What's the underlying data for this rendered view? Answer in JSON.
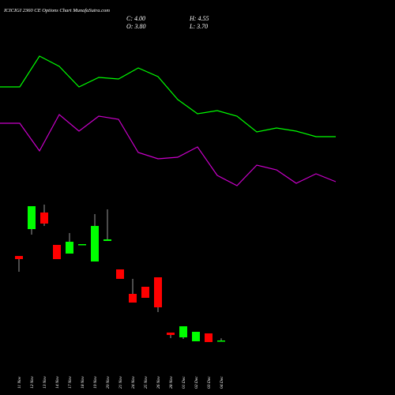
{
  "header": {
    "title": "ICICIGI 2360  CE Options  Chart MunafaSutra.com",
    "close": "C: 4.00",
    "open": "O: 3.80",
    "high": "H: 4.55",
    "low": "L: 3.70"
  },
  "chart_data": [
    {
      "type": "line",
      "ylim": [
        0,
        100
      ],
      "series": [
        {
          "color": "#00ff00",
          "values": [
            56,
            56,
            71.6,
            66.4,
            56,
            60.8,
            60,
            65.6,
            61.2,
            49.6,
            42.4,
            44,
            41.2,
            33.2,
            35.2,
            33.6,
            30.8,
            30.8
          ]
        },
        {
          "color": "#cc00cc",
          "values": [
            37.6,
            37.6,
            23.6,
            42,
            33.6,
            41.2,
            39.6,
            22.8,
            19.6,
            20.4,
            25.6,
            11.2,
            6,
            16.4,
            14,
            7.2,
            12,
            8
          ]
        }
      ]
    },
    {
      "type": "candlestick",
      "ylim": [
        0,
        40
      ],
      "up_color": "#00ff00",
      "down_color": "#ff0000",
      "wick_color": "#999999",
      "categories": [
        "11 Nov",
        "12 Nov",
        "13 Nov",
        "14 Nov",
        "17 Nov",
        "18 Nov",
        "19 Nov",
        "20 Nov",
        "21 Nov",
        "24 Nov",
        "25 Nov",
        "26 Nov",
        "28 Nov",
        "01 Dec",
        "02 Dec",
        "03 Dec",
        "04 Dec"
      ],
      "open": [
        25.4,
        32.2,
        36.4,
        28.2,
        26,
        28.2,
        24,
        29.2,
        22,
        15.8,
        17.6,
        20,
        6,
        4.8,
        3.8,
        5.8,
        3.8
      ],
      "high": [
        25.4,
        38,
        38.4,
        28.2,
        31.2,
        28.4,
        36,
        37.2,
        22,
        19.6,
        17.6,
        20,
        6,
        7.6,
        6.2,
        5.8,
        4.55
      ],
      "low": [
        21.4,
        30.8,
        33,
        24.6,
        26,
        28.2,
        24,
        29.2,
        19.6,
        13.6,
        14.8,
        11.2,
        4.6,
        4.4,
        3.8,
        3.6,
        3.7
      ],
      "close": [
        24.6,
        38,
        33.6,
        24.6,
        29,
        28.4,
        33,
        29.6,
        19.6,
        13.6,
        14.8,
        12.4,
        5.4,
        7.6,
        6.2,
        3.6,
        4
      ]
    }
  ]
}
